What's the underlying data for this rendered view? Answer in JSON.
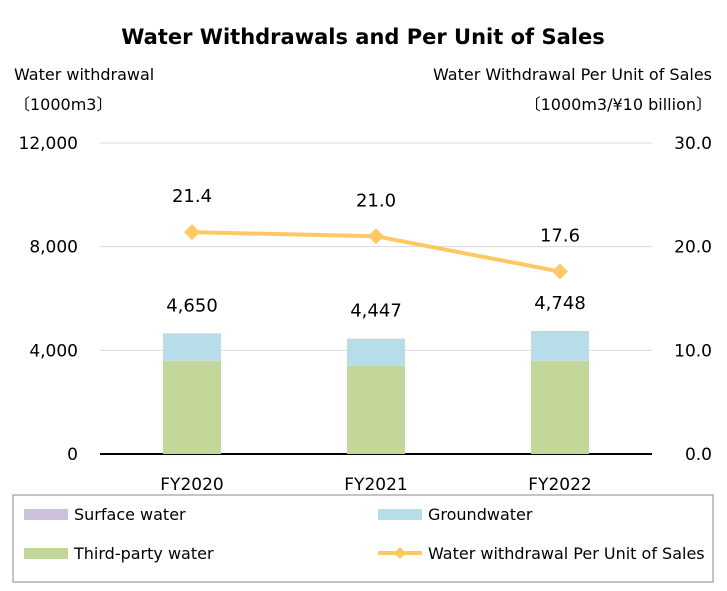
{
  "chart_data": {
    "type": "bar",
    "title": "Water Withdrawals and Per Unit of Sales",
    "categories": [
      "FY2020",
      "FY2021",
      "FY2022"
    ],
    "y_left": {
      "label": "Water withdrawal",
      "unit": "〔1000m3〕",
      "range": [
        0,
        12000
      ],
      "ticks": [
        "12,000",
        "8,000",
        "4,000",
        "0"
      ],
      "tick_values": [
        12000,
        8000,
        4000,
        0
      ]
    },
    "y_right": {
      "label": "Water Withdrawal Per Unit of Sales",
      "unit": "〔1000m3/¥10 billion〕",
      "range": [
        0,
        30
      ],
      "ticks": [
        "30.0",
        "20.0",
        "10.0",
        "0.0"
      ],
      "tick_values": [
        30,
        20,
        10,
        0
      ]
    },
    "stacked": true,
    "series": [
      {
        "name": "Surface water",
        "type": "bar",
        "axis": "left",
        "color": "#ccc0da",
        "values": [
          20,
          15,
          20
        ]
      },
      {
        "name": "Groundwater",
        "type": "bar",
        "axis": "left",
        "color": "#b7dde8",
        "values": [
          1030,
          1030,
          1130
        ]
      },
      {
        "name": "Third-party water",
        "type": "bar",
        "axis": "left",
        "color": "#c4d79b",
        "values": [
          3600,
          3402,
          3598
        ]
      },
      {
        "name": "Water withdrawal Per Unit of Sales",
        "type": "line",
        "axis": "right",
        "color": "#ffc864",
        "values": [
          21.4,
          21.0,
          17.6
        ]
      }
    ],
    "totals": [
      "4,650",
      "4,447",
      "4,748"
    ],
    "line_labels": [
      "21.4",
      "21.0",
      "17.6"
    ],
    "legend": {
      "position": "bottom"
    },
    "grid": true
  }
}
